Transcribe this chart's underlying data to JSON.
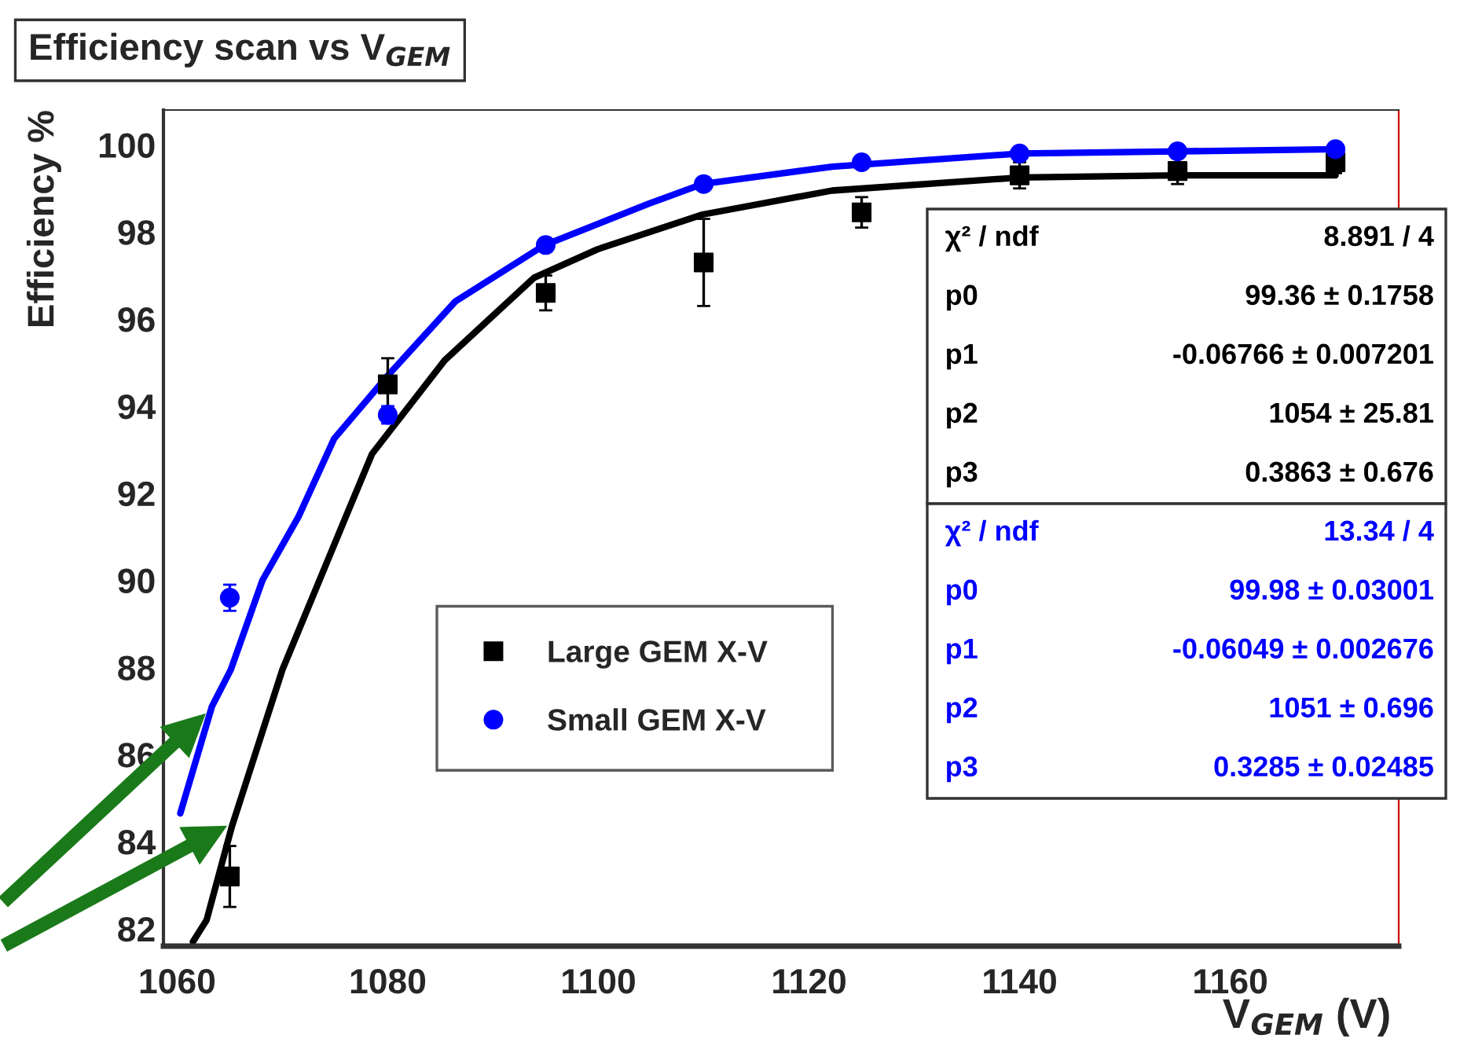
{
  "chart_data": {
    "type": "scatter",
    "title": "Efficiency scan vs V$_{GEM}$",
    "xlabel": "V$_{GEM}$ (V)",
    "ylabel": "Efficiency %",
    "x": [
      1065,
      1080,
      1095,
      1110,
      1125,
      1140,
      1155,
      1170
    ],
    "series": [
      {
        "name": "Large GEM X-V",
        "color": "#000000",
        "marker": "square",
        "values": [
          83.2,
          94.5,
          96.6,
          97.3,
          98.45,
          99.3,
          99.4,
          99.6
        ],
        "errors": [
          0.7,
          0.6,
          0.4,
          1.0,
          0.35,
          0.3,
          0.3,
          0.25
        ]
      },
      {
        "name": "Small GEM X-V",
        "color": "#0000ff",
        "marker": "circle",
        "values": [
          89.6,
          93.8,
          97.7,
          99.1,
          99.6,
          99.8,
          99.85,
          99.9
        ],
        "errors": [
          0.3,
          0.2,
          0.15,
          0.1,
          0.1,
          0.1,
          0.1,
          0.1
        ]
      },
      {
        "type": "line",
        "color": "#000000",
        "line_style": "solid",
        "x": [
          1061.5,
          1062.8,
          1065.2,
          1070,
          1076,
          1078.5,
          1085.4,
          1093.9,
          1099.9,
          1109.9,
          1122.2,
          1140,
          1155,
          1170
        ],
        "values": [
          81.7,
          82.2,
          84.35,
          87.95,
          91.45,
          92.9,
          95.05,
          96.95,
          97.6,
          98.4,
          98.95,
          99.25,
          99.3,
          99.3
        ]
      },
      {
        "type": "line",
        "color": "#0000ff",
        "line_style": "solid",
        "x": [
          1060.3,
          1063.3,
          1065.1,
          1068.1,
          1071.5,
          1074.9,
          1080,
          1086.4,
          1094.9,
          1104.8,
          1109.9,
          1122.2,
          1140,
          1155,
          1170
        ],
        "values": [
          84.65,
          87.1,
          87.95,
          90.0,
          91.45,
          93.25,
          94.7,
          96.4,
          97.7,
          98.65,
          99.1,
          99.5,
          99.8,
          99.85,
          99.9
        ]
      }
    ],
    "xlim": [
      1058.7,
      1176
    ],
    "xticks": [
      1060,
      1080,
      1100,
      1120,
      1140,
      1160
    ],
    "ylim": [
      81.6,
      100.8
    ],
    "yticks": [
      82,
      84,
      86,
      88,
      90,
      92,
      94,
      96,
      98,
      100
    ],
    "grid": false,
    "legend": "center left",
    "annotations": [
      "χ² / ndf",
      "8.891 / 4",
      "p0",
      "99.36 ± 0.1758",
      "p1",
      "-0.06766 ± 0.007201",
      "p2",
      "1054 ± 25.81",
      "p3",
      "0.3863 ± 0.676",
      "χ² / ndf",
      "13.34 / 4",
      "p0",
      "99.98 ± 0.03001",
      "p1",
      "-0.06049 ± 0.002676",
      "p2",
      "1051 ± 0.696",
      "p3",
      "0.3285 ± 0.02485"
    ]
  }
}
